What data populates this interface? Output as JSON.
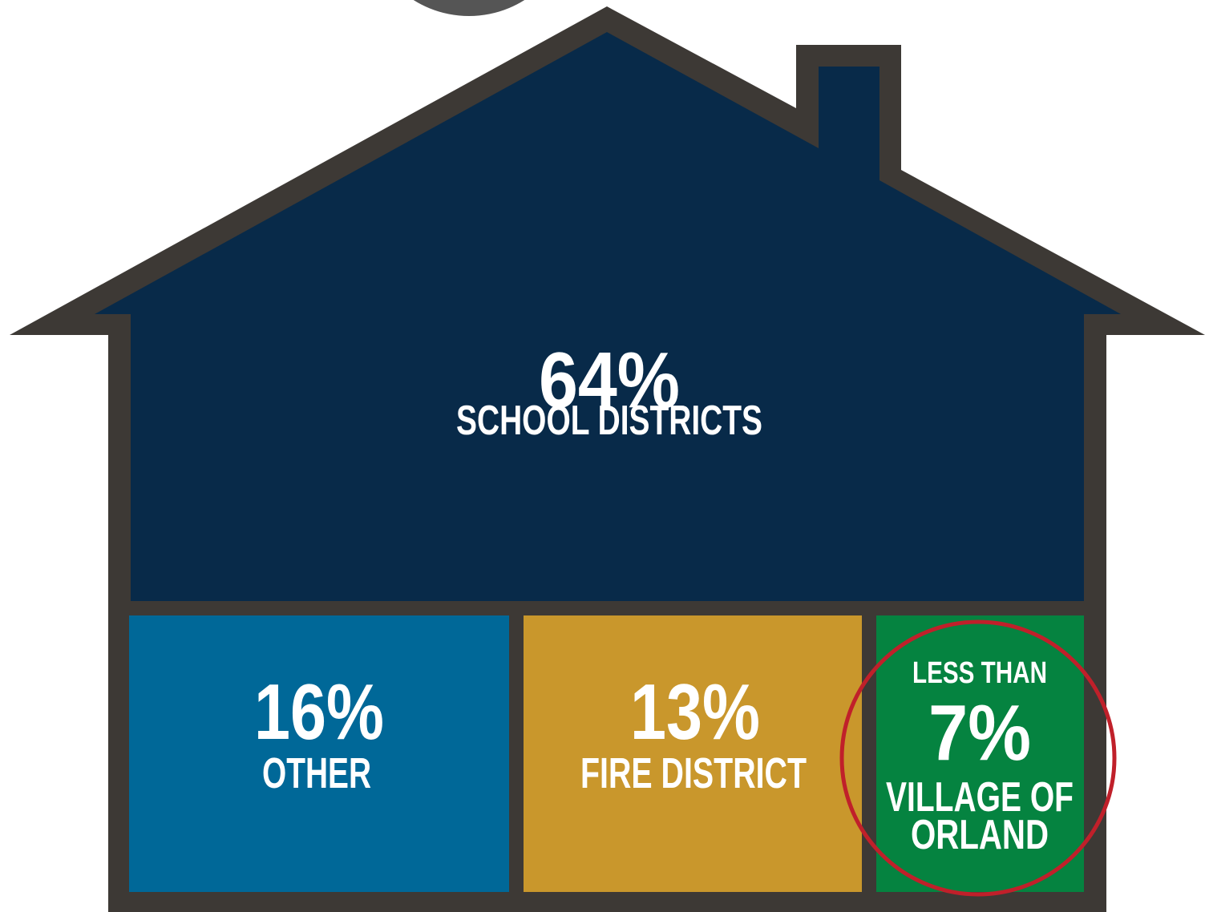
{
  "sections": [
    {
      "value": "64%",
      "label": "SCHOOL DISTRICTS"
    },
    {
      "value": "16%",
      "label": "OTHER"
    },
    {
      "value": "13%",
      "label": "FIRE DISTRICT"
    },
    {
      "prefix": "LESS THAN",
      "value": "7%",
      "label": [
        "VILLAGE OF",
        "ORLAND"
      ]
    }
  ]
}
